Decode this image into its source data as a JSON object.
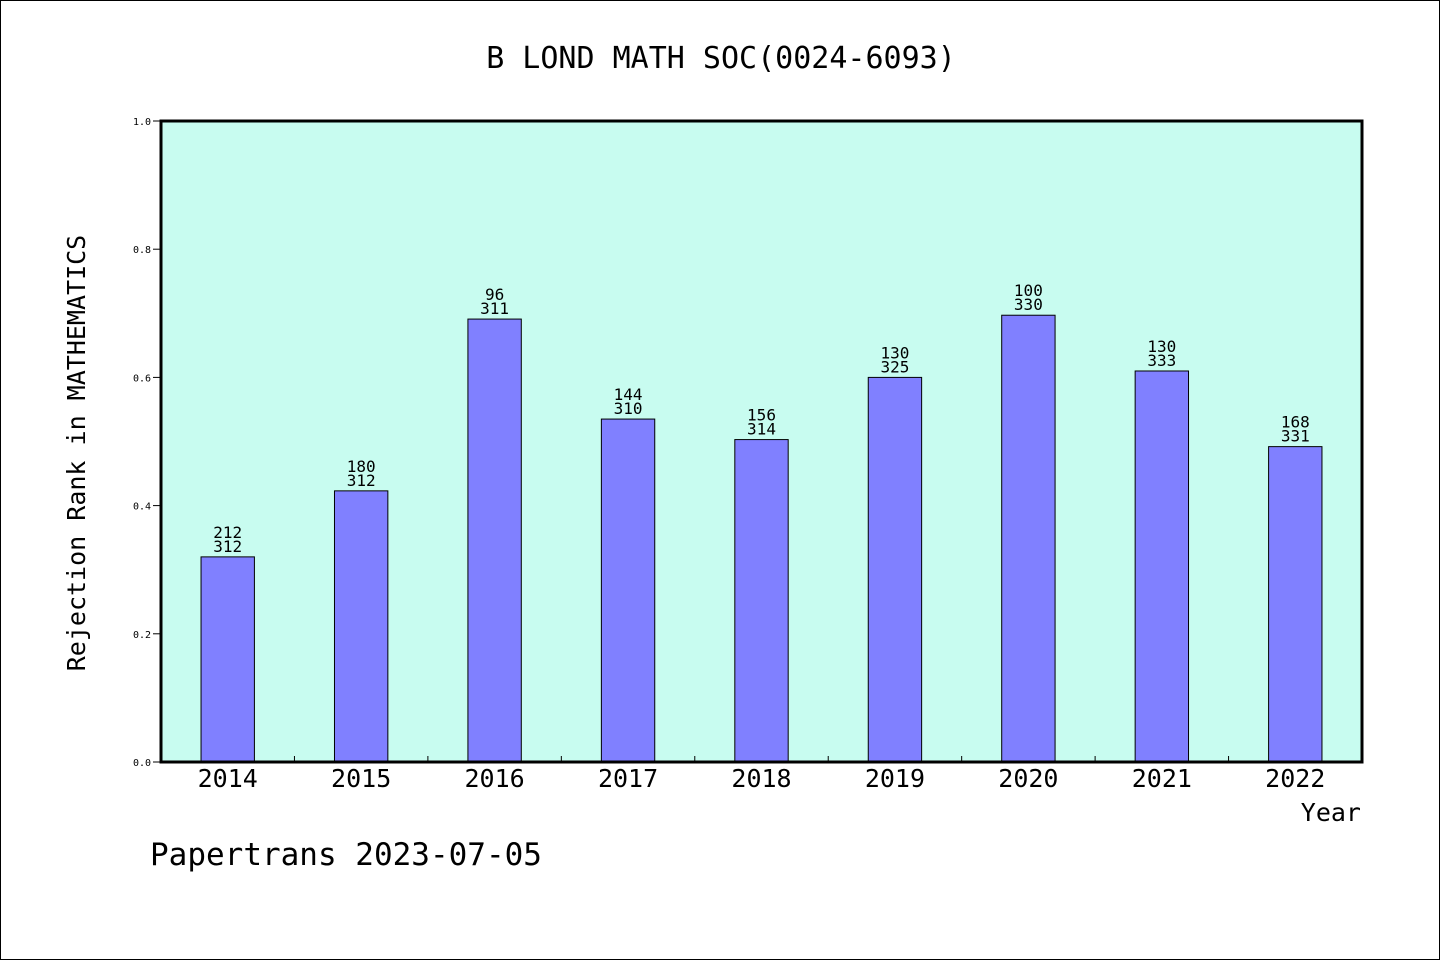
{
  "chart_data": {
    "type": "bar",
    "title": "B LOND MATH SOC(0024-6093)",
    "xlabel": "Year",
    "ylabel": "Rejection Rank in MATHEMATICS",
    "footer": "Papertrans 2023-07-05",
    "ylim": [
      0,
      1.0
    ],
    "yticks": [
      "0.0",
      "0.2",
      "0.4",
      "0.6",
      "0.8",
      "1.0"
    ],
    "categories": [
      "2014",
      "2015",
      "2016",
      "2017",
      "2018",
      "2019",
      "2020",
      "2021",
      "2022"
    ],
    "values": [
      0.32,
      0.423,
      0.691,
      0.535,
      0.503,
      0.6,
      0.697,
      0.61,
      0.492
    ],
    "labels_top": [
      "212",
      "180",
      "96",
      "144",
      "156",
      "130",
      "100",
      "130",
      "168"
    ],
    "labels_bottom": [
      "312",
      "312",
      "311",
      "310",
      "314",
      "325",
      "330",
      "333",
      "331"
    ],
    "grid": false,
    "colors": {
      "plot_bg": "#c8fcf0",
      "bar": "#8080ff",
      "bar_edge": "#000000"
    }
  }
}
